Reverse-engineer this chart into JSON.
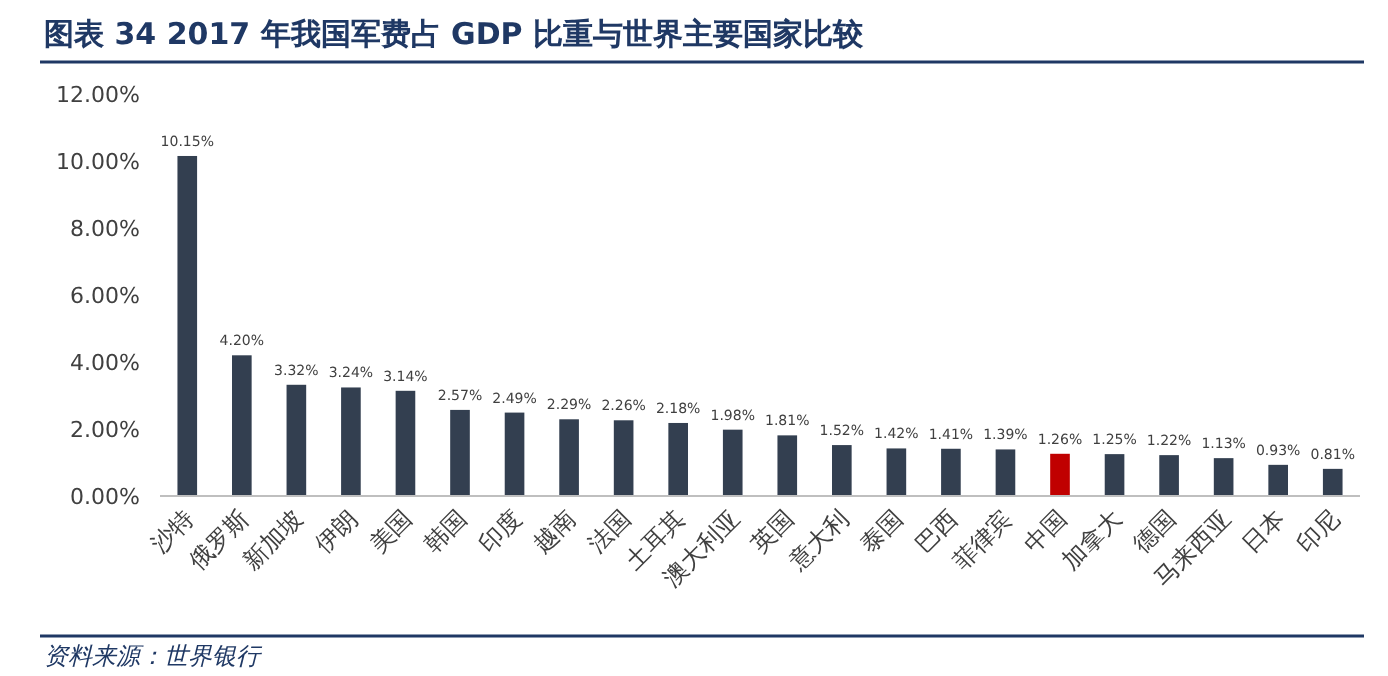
{
  "chart_data": {
    "type": "bar",
    "title": "图表 34 2017 年我国军费占 GDP 比重与世界主要国家比较",
    "categories": [
      "沙特",
      "俄罗斯",
      "新加坡",
      "伊朗",
      "美国",
      "韩国",
      "印度",
      "越南",
      "法国",
      "土耳其",
      "澳大利亚",
      "英国",
      "意大利",
      "泰国",
      "巴西",
      "菲律宾",
      "中国",
      "加拿大",
      "德国",
      "马来西亚",
      "日本",
      "印尼"
    ],
    "values": [
      10.15,
      4.2,
      3.32,
      3.24,
      3.14,
      2.57,
      2.49,
      2.29,
      2.26,
      2.18,
      1.98,
      1.81,
      1.52,
      1.42,
      1.41,
      1.39,
      1.26,
      1.25,
      1.22,
      1.13,
      0.93,
      0.81
    ],
    "value_labels": [
      "10.15%",
      "4.20%",
      "3.32%",
      "3.24%",
      "3.14%",
      "2.57%",
      "2.49%",
      "2.29%",
      "2.26%",
      "2.18%",
      "1.98%",
      "1.81%",
      "1.52%",
      "1.42%",
      "1.41%",
      "1.39%",
      "1.26%",
      "1.25%",
      "1.22%",
      "1.13%",
      "0.93%",
      "0.81%"
    ],
    "colors": [
      "#333f50",
      "#333f50",
      "#333f50",
      "#333f50",
      "#333f50",
      "#333f50",
      "#333f50",
      "#333f50",
      "#333f50",
      "#333f50",
      "#333f50",
      "#333f50",
      "#333f50",
      "#333f50",
      "#333f50",
      "#333f50",
      "#c00000",
      "#333f50",
      "#333f50",
      "#333f50",
      "#333f50",
      "#333f50"
    ],
    "ylim": [
      0,
      12
    ],
    "yticks": [
      {
        "value": 0,
        "label": "0.00%"
      },
      {
        "value": 2,
        "label": "2.00%"
      },
      {
        "value": 4,
        "label": "4.00%"
      },
      {
        "value": 6,
        "label": "6.00%"
      },
      {
        "value": 8,
        "label": "8.00%"
      },
      {
        "value": 10,
        "label": "10.00%"
      },
      {
        "value": 12,
        "label": "12.00%"
      }
    ],
    "annotations": [
      "资料来源：世界银行"
    ]
  }
}
